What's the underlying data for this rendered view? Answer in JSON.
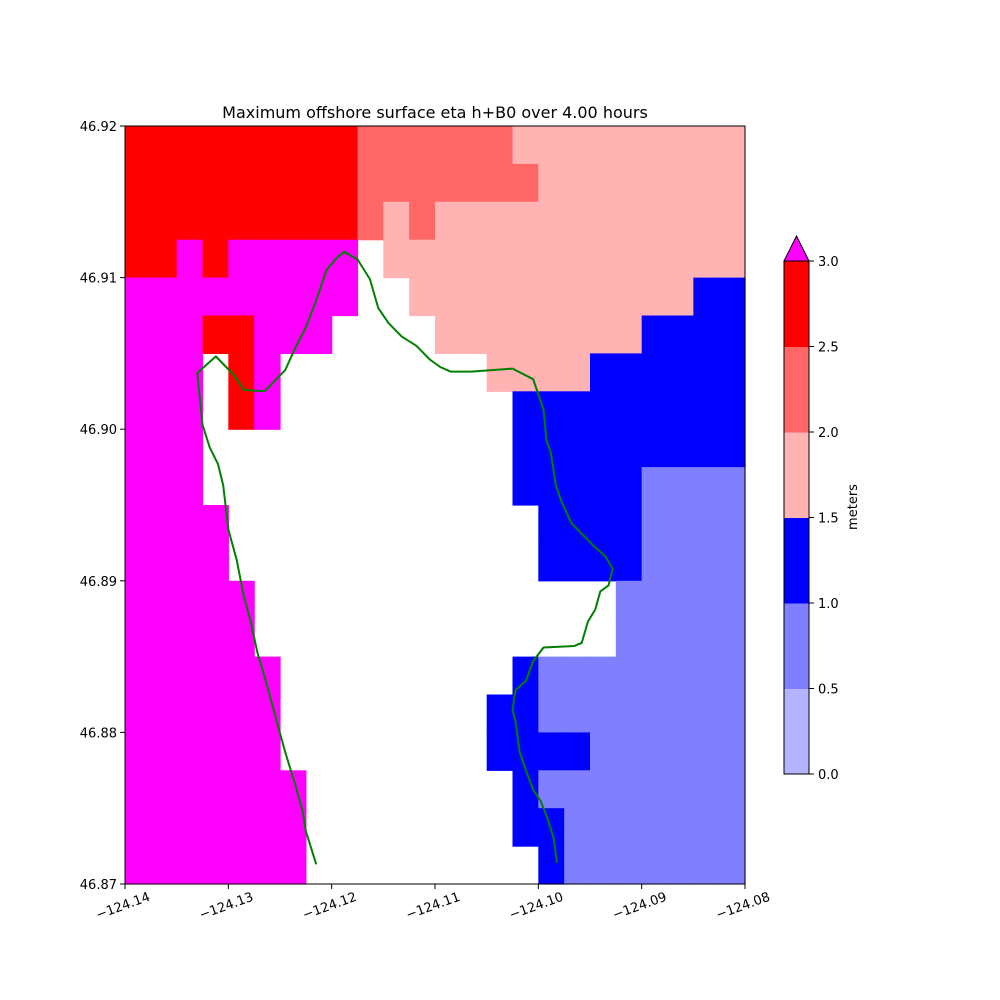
{
  "chart_data": {
    "type": "heatmap",
    "title": "Maximum offshore surface eta h+B0 over 4.00 hours",
    "xlim": [
      -124.14,
      -124.08
    ],
    "ylim": [
      46.87,
      46.92
    ],
    "x_ticks": [
      -124.14,
      -124.13,
      -124.12,
      -124.11,
      -124.1,
      -124.09,
      -124.08
    ],
    "x_tick_labels": [
      "−124.14",
      "−124.13",
      "−124.12",
      "−124.11",
      "−124.10",
      "−124.09",
      "−124.08"
    ],
    "y_ticks": [
      46.87,
      46.88,
      46.89,
      46.9,
      46.91,
      46.92
    ],
    "y_tick_labels": [
      "46.87",
      "46.88",
      "46.89",
      "46.90",
      "46.91",
      "46.92"
    ],
    "grid": false,
    "colorbar": {
      "label": "meters",
      "levels": [
        0.0,
        0.5,
        1.0,
        1.5,
        2.0,
        2.5,
        3.0
      ],
      "tick_labels": [
        "0.0",
        "0.5",
        "1.0",
        "1.5",
        "2.0",
        "2.5",
        "3.0"
      ],
      "colors": [
        "#b3b3ff",
        "#8080ff",
        "#0000ff",
        "#ffb3b3",
        "#ff6666",
        "#ff0000"
      ],
      "over_color": "#ff00ff",
      "extend": "max"
    },
    "grid_lon_edges": [
      -124.14,
      -124.1375,
      -124.135,
      -124.1325,
      -124.13,
      -124.1275,
      -124.125,
      -124.1225,
      -124.12,
      -124.1175,
      -124.115,
      -124.1125,
      -124.11,
      -124.1075,
      -124.105,
      -124.1025,
      -124.1,
      -124.0975,
      -124.095,
      -124.0925,
      -124.09,
      -124.0875,
      -124.085,
      -124.0825,
      -124.08
    ],
    "grid_lat_edges_top_down": [
      46.92,
      46.9175,
      46.915,
      46.9125,
      46.91,
      46.9075,
      46.905,
      46.9025,
      46.9,
      46.8975,
      46.895,
      46.8925,
      46.89,
      46.8875,
      46.885,
      46.8825,
      46.88,
      46.8775,
      46.875,
      46.8725,
      46.87
    ],
    "cell_legend": {
      "M": "> 3.0 m",
      "R": "2.5–3.0 m",
      "S": "2.0–2.5 m",
      "P": "1.5–2.0 m",
      "B": "1.0–1.5 m",
      "L": "0.5–1.0 m",
      ".": "no data (land)"
    },
    "cells_top_down": [
      "RRRRRRRRRSSSSSSPPPPPPPPP",
      "RRRRRRRRRSSSSSSSPPPPPPPP",
      "RRRRRRRRRSPSPPPPPPPPPPPP",
      "RRMRMMMMM.PPPPPPPPPPPPPP",
      "MMMMMMMMM..PPPPPPPPPPPBB",
      "MMMRRMMM....PPPPPPPPBBBB",
      "MMM.RM........PPPPBBBBBB",
      "MMM.RM.........BBBBBBBBB",
      "MMM............BBBBBBBBB",
      "MMM............BBBBBLLLL",
      "MMMM............BBBBLLLL",
      "MMMM............BBBBLLLL",
      "MMMMM..............LLLLL",
      "MMMMM..............LLLLL",
      "MMMMMM.........BLLLLLLLL",
      "MMMMMM........BBLLLLLLLL",
      "MMMMMM........BBBBLLLLLL",
      "MMMMMMM........BLLLLLLLL",
      "MMMMMMM........BBLLLLLLL",
      "MMMMMMM.........BLLLLLLL"
    ],
    "coastline": {
      "color": "#008000",
      "lon": [
        -124.1215,
        -124.1225,
        -124.1228,
        -124.1235,
        -124.1245,
        -124.1255,
        -124.1265,
        -124.1272,
        -124.1278,
        -124.1285,
        -124.1292,
        -124.13,
        -124.1305,
        -124.131,
        -124.1318,
        -124.1325,
        -124.133,
        -124.1322,
        -124.1312,
        -124.1305,
        -124.1295,
        -124.1285,
        -124.1265,
        -124.1245,
        -124.1235,
        -124.1225,
        -124.1215,
        -124.1205,
        -124.1195,
        -124.1188,
        -124.1175,
        -124.1163,
        -124.1155,
        -124.1145,
        -124.1132,
        -124.1118,
        -124.1105,
        -124.1095,
        -124.1085,
        -124.1065,
        -124.1045,
        -124.1025,
        -124.1005,
        -124.0995,
        -124.0992,
        -124.0988,
        -124.0983,
        -124.0978,
        -124.0968,
        -124.0955,
        -124.0945,
        -124.0935,
        -124.0928,
        -124.0932,
        -124.094,
        -124.0945,
        -124.0952,
        -124.0958,
        -124.0962,
        -124.0965,
        -124.0995,
        -124.1005,
        -124.1012,
        -124.1022,
        -124.1025,
        -124.1022,
        -124.1018,
        -124.1012,
        -124.1005,
        -124.0998,
        -124.0992,
        -124.0985,
        -124.0982
      ],
      "lat": [
        46.8713,
        46.8735,
        46.8748,
        46.8765,
        46.8787,
        46.8812,
        46.8837,
        46.8853,
        46.8872,
        46.889,
        46.8914,
        46.8934,
        46.8963,
        46.8977,
        46.8988,
        46.9003,
        46.9037,
        46.9042,
        46.9048,
        46.9043,
        46.9036,
        46.9026,
        46.9025,
        46.9039,
        46.9054,
        46.9067,
        46.9085,
        46.9105,
        46.9113,
        46.9117,
        46.9112,
        46.9099,
        46.908,
        46.907,
        46.9061,
        46.9055,
        46.9046,
        46.9041,
        46.9038,
        46.9038,
        46.9039,
        46.904,
        46.9033,
        46.9013,
        46.8992,
        46.8985,
        46.8963,
        46.8953,
        46.8938,
        46.8929,
        46.8922,
        46.8916,
        46.8908,
        46.8897,
        46.8893,
        46.8881,
        46.8873,
        46.8859,
        46.8858,
        46.8857,
        46.8856,
        46.8847,
        46.8834,
        46.8828,
        46.8815,
        46.8807,
        46.8787,
        46.8775,
        46.8762,
        46.8755,
        46.8745,
        46.873,
        46.8714
      ]
    }
  }
}
